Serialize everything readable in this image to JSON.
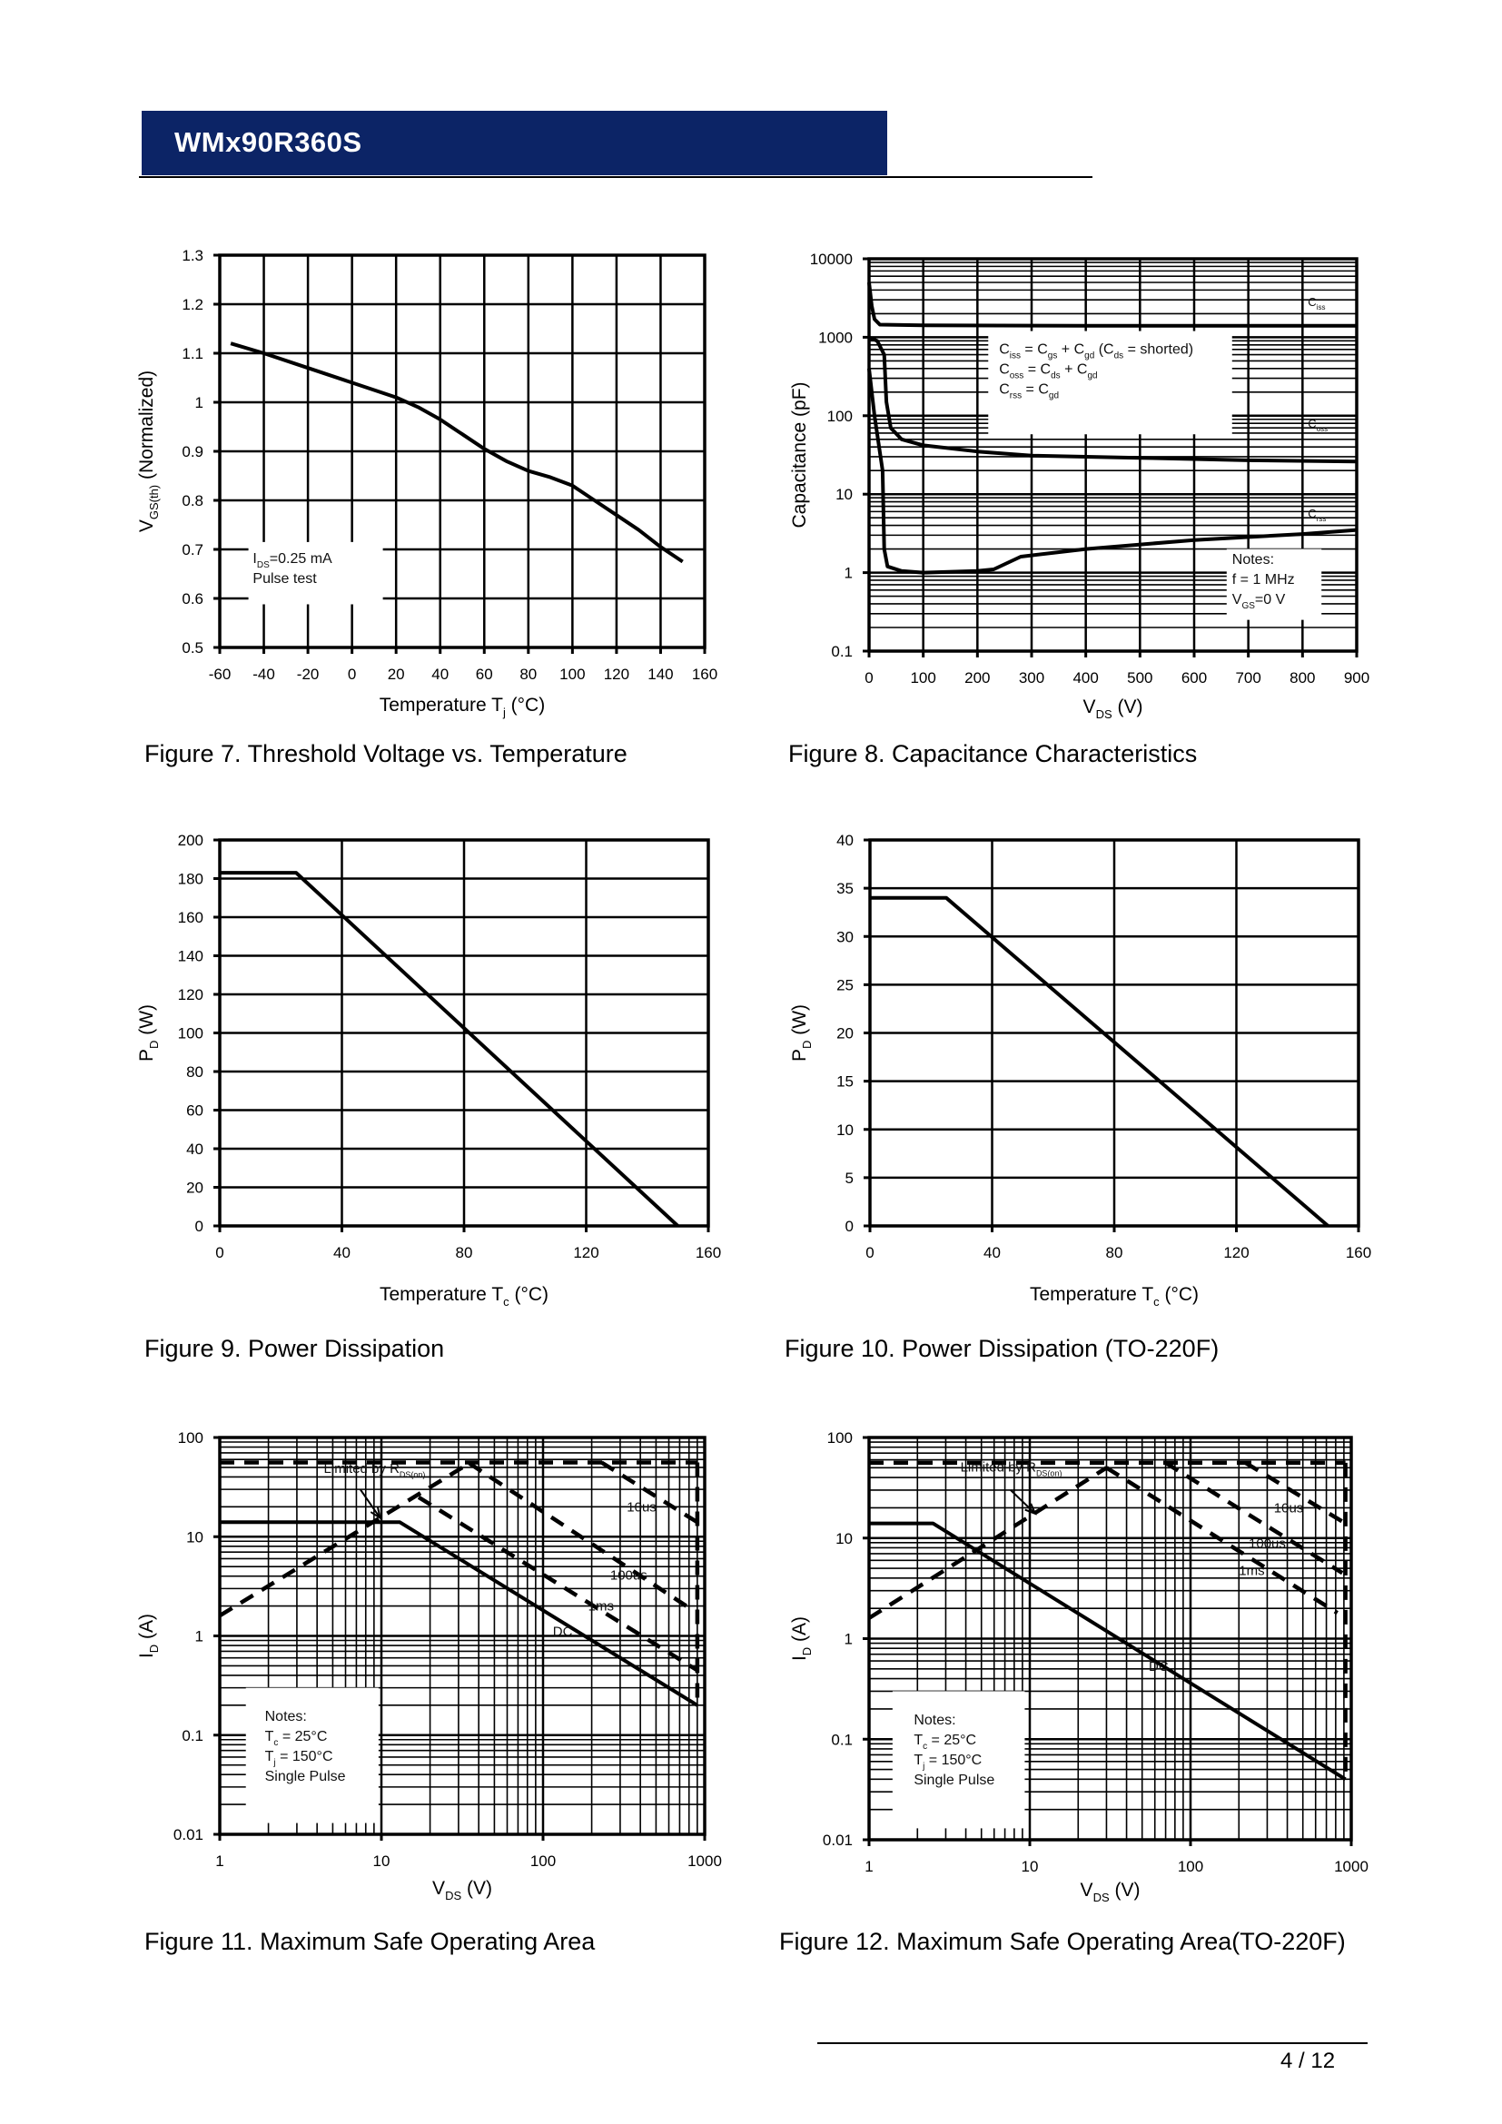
{
  "header": {
    "title": "WMx90R360S",
    "brand_color": "#0c2466"
  },
  "footer": {
    "page": "4 / 12"
  },
  "figures": [
    {
      "caption": "Figure 7. Threshold Voltage vs. Temperature"
    },
    {
      "caption": "Figure 8. Capacitance Characteristics"
    },
    {
      "caption": "Figure 9. Power Dissipation"
    },
    {
      "caption": "Figure 10. Power Dissipation (TO-220F)"
    },
    {
      "caption": "Figure 11. Maximum Safe Operating Area"
    },
    {
      "caption": "Figure 12. Maximum Safe Operating Area(TO-220F)"
    }
  ],
  "chart_data": [
    {
      "type": "line",
      "xlabel": [
        "Temperature T",
        {
          "s": "j"
        },
        " (°C)"
      ],
      "ylabel": [
        "V",
        {
          "s": "GS(th)"
        },
        " (Normalized)"
      ],
      "xscale": "linear",
      "yscale": "linear",
      "xlim": [
        -60,
        160
      ],
      "ylim": [
        0.5,
        1.3
      ],
      "xticks": [
        -60,
        -40,
        -20,
        0,
        20,
        40,
        60,
        80,
        100,
        120,
        140,
        160
      ],
      "yticks": [
        0.5,
        0.6,
        0.7,
        0.8,
        0.9,
        1,
        1.1,
        1.2,
        1.3
      ],
      "grid": true,
      "series": [
        {
          "line": "solid",
          "points": [
            [
              -55,
              1.12
            ],
            [
              -40,
              1.1
            ],
            [
              -20,
              1.07
            ],
            [
              0,
              1.04
            ],
            [
              20,
              1.01
            ],
            [
              30,
              0.99
            ],
            [
              40,
              0.965
            ],
            [
              50,
              0.935
            ],
            [
              60,
              0.905
            ],
            [
              70,
              0.88
            ],
            [
              80,
              0.86
            ],
            [
              90,
              0.847
            ],
            [
              100,
              0.83
            ],
            [
              110,
              0.8
            ],
            [
              120,
              0.77
            ],
            [
              130,
              0.74
            ],
            [
              140,
              0.705
            ],
            [
              150,
              0.675
            ]
          ]
        }
      ],
      "annotations": [
        {
          "lines": [
            [
              "I",
              {
                "s": "DS"
              },
              "=0.25 mA"
            ],
            [
              "Pulse test"
            ]
          ]
        }
      ]
    },
    {
      "type": "line",
      "xlabel": [
        "V",
        {
          "s": "DS"
        },
        " (V)"
      ],
      "ylabel": [
        "Capacitance (pF)"
      ],
      "xscale": "linear",
      "yscale": "log",
      "xlim": [
        0,
        900
      ],
      "ylim": [
        0.1,
        10000
      ],
      "xticks": [
        0,
        100,
        200,
        300,
        400,
        500,
        600,
        700,
        800,
        900
      ],
      "yticks": [
        0.1,
        1,
        10,
        100,
        1000,
        10000
      ],
      "grid": true,
      "series": [
        {
          "line": "solid",
          "points": [
            [
              0,
              5000
            ],
            [
              5,
              2500
            ],
            [
              10,
              1700
            ],
            [
              20,
              1450
            ],
            [
              100,
              1420
            ],
            [
              400,
              1400
            ],
            [
              900,
              1400
            ]
          ]
        },
        {
          "line": "solid",
          "points": [
            [
              0,
              1000
            ],
            [
              15,
              900
            ],
            [
              28,
              600
            ],
            [
              32,
              150
            ],
            [
              40,
              70
            ],
            [
              60,
              50
            ],
            [
              100,
              42
            ],
            [
              200,
              35
            ],
            [
              300,
              31
            ],
            [
              500,
              29
            ],
            [
              700,
              27
            ],
            [
              900,
              26
            ]
          ]
        },
        {
          "line": "solid",
          "points": [
            [
              0,
              400
            ],
            [
              10,
              100
            ],
            [
              25,
              20
            ],
            [
              28,
              2
            ],
            [
              34,
              1.2
            ],
            [
              60,
              1.05
            ],
            [
              100,
              1.0
            ],
            [
              200,
              1.05
            ],
            [
              230,
              1.1
            ],
            [
              280,
              1.6
            ],
            [
              400,
              2.0
            ],
            [
              600,
              2.6
            ],
            [
              800,
              3.1
            ],
            [
              900,
              3.5
            ]
          ]
        }
      ],
      "annotations": [
        {
          "lines": [
            [
              "C",
              {
                "s": "iss"
              }
            ]
          ]
        },
        {
          "lines": [
            [
              "C",
              {
                "s": "oss"
              }
            ]
          ]
        },
        {
          "lines": [
            [
              "C",
              {
                "s": "rss"
              }
            ]
          ]
        },
        {
          "lines": [
            [
              "C",
              {
                "s": "iss"
              },
              " = C",
              {
                "s": "gs"
              },
              " + C",
              {
                "s": "gd"
              },
              " (C",
              {
                "s": "ds"
              },
              " = shorted)"
            ],
            [
              "C",
              {
                "s": "oss"
              },
              " = C",
              {
                "s": "ds"
              },
              " + C",
              {
                "s": "gd"
              }
            ],
            [
              "C",
              {
                "s": "rss"
              },
              " = C",
              {
                "s": "gd"
              }
            ]
          ]
        },
        {
          "lines": [
            [
              "Notes:"
            ],
            [
              "f = 1 MHz"
            ],
            [
              "V",
              {
                "s": "GS"
              },
              "=0 V"
            ]
          ]
        }
      ]
    },
    {
      "type": "line",
      "xlabel": [
        "Temperature T",
        {
          "s": "c"
        },
        " (°C)"
      ],
      "ylabel": [
        "P",
        {
          "s": "D"
        },
        " (W)"
      ],
      "xscale": "linear",
      "yscale": "linear",
      "xlim": [
        0,
        160
      ],
      "ylim": [
        0,
        200
      ],
      "xticks": [
        0,
        40,
        80,
        120,
        160
      ],
      "yticks": [
        0,
        20,
        40,
        60,
        80,
        100,
        120,
        140,
        160,
        180,
        200
      ],
      "grid": true,
      "series": [
        {
          "line": "solid",
          "points": [
            [
              0,
              183
            ],
            [
              25,
              183
            ],
            [
              150,
              0
            ]
          ]
        }
      ],
      "annotations": []
    },
    {
      "type": "line",
      "xlabel": [
        "Temperature T",
        {
          "s": "c"
        },
        " (°C)"
      ],
      "ylabel": [
        "P",
        {
          "s": "D"
        },
        " (W)"
      ],
      "xscale": "linear",
      "yscale": "linear",
      "xlim": [
        0,
        160
      ],
      "ylim": [
        0,
        40
      ],
      "xticks": [
        0,
        40,
        80,
        120,
        160
      ],
      "yticks": [
        0,
        5,
        10,
        15,
        20,
        25,
        30,
        35,
        40
      ],
      "grid": true,
      "series": [
        {
          "line": "solid",
          "points": [
            [
              0,
              34
            ],
            [
              25,
              34
            ],
            [
              150,
              0
            ]
          ]
        }
      ],
      "annotations": []
    },
    {
      "type": "line",
      "xlabel": [
        "V",
        {
          "s": "DS"
        },
        " (V)"
      ],
      "ylabel": [
        "I",
        {
          "s": "D"
        },
        " (A)"
      ],
      "xscale": "log",
      "yscale": "log",
      "xlim": [
        1,
        1000
      ],
      "ylim": [
        0.01,
        100
      ],
      "xticks": [
        1,
        10,
        100,
        1000
      ],
      "yticks": [
        0.01,
        0.1,
        1,
        10,
        100
      ],
      "grid": true,
      "series": [
        {
          "line": "dashed",
          "points": [
            [
              1,
              1.6
            ],
            [
              35,
              55
            ]
          ]
        },
        {
          "line": "dashed",
          "points": [
            [
              1,
              56
            ],
            [
              900,
              56
            ]
          ]
        },
        {
          "line": "dashed",
          "points": [
            [
              230,
              56
            ],
            [
              900,
              14
            ]
          ]
        },
        {
          "line": "dashed",
          "points": [
            [
              35,
              55
            ],
            [
              850,
              1.8
            ]
          ]
        },
        {
          "line": "dashed",
          "points": [
            [
              17,
              25
            ],
            [
              900,
              0.45
            ]
          ]
        },
        {
          "line": "dashed",
          "points": [
            [
              900,
              56
            ],
            [
              900,
              0.2
            ]
          ]
        },
        {
          "line": "solid",
          "points": [
            [
              1,
              14
            ],
            [
              13,
              14
            ],
            [
              900,
              0.2
            ]
          ]
        }
      ],
      "annotations": [
        {
          "lines": [
            [
              "Limited by R",
              {
                "s": "DS(on)"
              }
            ]
          ]
        },
        {
          "lines": [
            [
              "10us"
            ]
          ]
        },
        {
          "lines": [
            [
              "100us"
            ]
          ]
        },
        {
          "lines": [
            [
              "1ms"
            ]
          ]
        },
        {
          "lines": [
            [
              "DC"
            ]
          ]
        },
        {
          "lines": [
            [
              "Notes:"
            ],
            [
              "T",
              {
                "s": "c"
              },
              " = 25°C"
            ],
            [
              "T",
              {
                "s": "j"
              },
              " = 150°C"
            ],
            [
              "Single Pulse"
            ]
          ]
        }
      ]
    },
    {
      "type": "line",
      "xlabel": [
        "V",
        {
          "s": "DS"
        },
        " (V)"
      ],
      "ylabel": [
        "I",
        {
          "s": "D"
        },
        " (A)"
      ],
      "xscale": "log",
      "yscale": "log",
      "xlim": [
        1,
        1000
      ],
      "ylim": [
        0.01,
        100
      ],
      "xticks": [
        1,
        10,
        100,
        1000
      ],
      "yticks": [
        0.01,
        0.1,
        1,
        10,
        100
      ],
      "grid": true,
      "series": [
        {
          "line": "dashed",
          "points": [
            [
              1,
              1.6
            ],
            [
              30,
              50
            ]
          ]
        },
        {
          "line": "dashed",
          "points": [
            [
              1,
              56
            ],
            [
              920,
              56
            ]
          ]
        },
        {
          "line": "dashed",
          "points": [
            [
              220,
              56
            ],
            [
              920,
              14
            ]
          ]
        },
        {
          "line": "dashed",
          "points": [
            [
              70,
              56
            ],
            [
              880,
              4.5
            ]
          ]
        },
        {
          "line": "dashed",
          "points": [
            [
              30,
              50
            ],
            [
              820,
              1.8
            ]
          ]
        },
        {
          "line": "dashed",
          "points": [
            [
              920,
              56
            ],
            [
              920,
              0.04
            ]
          ]
        },
        {
          "line": "solid",
          "points": [
            [
              1,
              14
            ],
            [
              2.5,
              14
            ],
            [
              920,
              0.04
            ]
          ]
        }
      ],
      "annotations": [
        {
          "lines": [
            [
              "Limited by R",
              {
                "s": "DS(on)"
              }
            ]
          ]
        },
        {
          "lines": [
            [
              "10us"
            ]
          ]
        },
        {
          "lines": [
            [
              "100us"
            ]
          ]
        },
        {
          "lines": [
            [
              "1ms"
            ]
          ]
        },
        {
          "lines": [
            [
              "DC"
            ]
          ]
        },
        {
          "lines": [
            [
              "Notes:"
            ],
            [
              "T",
              {
                "s": "c"
              },
              " = 25°C"
            ],
            [
              "T",
              {
                "s": "j"
              },
              " = 150°C"
            ],
            [
              "Single Pulse"
            ]
          ]
        }
      ]
    }
  ]
}
